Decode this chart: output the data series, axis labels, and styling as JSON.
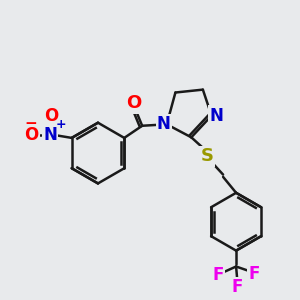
{
  "bg_color": "#e8eaec",
  "bond_color": "#1a1a1a",
  "bond_width": 1.8,
  "atom_colors": {
    "O": "#ff0000",
    "N": "#0000cc",
    "S": "#999900",
    "F": "#ee00ee",
    "C": "#1a1a1a"
  },
  "fig_size": [
    3.0,
    3.0
  ],
  "dpi": 100,
  "xlim": [
    0,
    10
  ],
  "ylim": [
    0,
    10
  ]
}
